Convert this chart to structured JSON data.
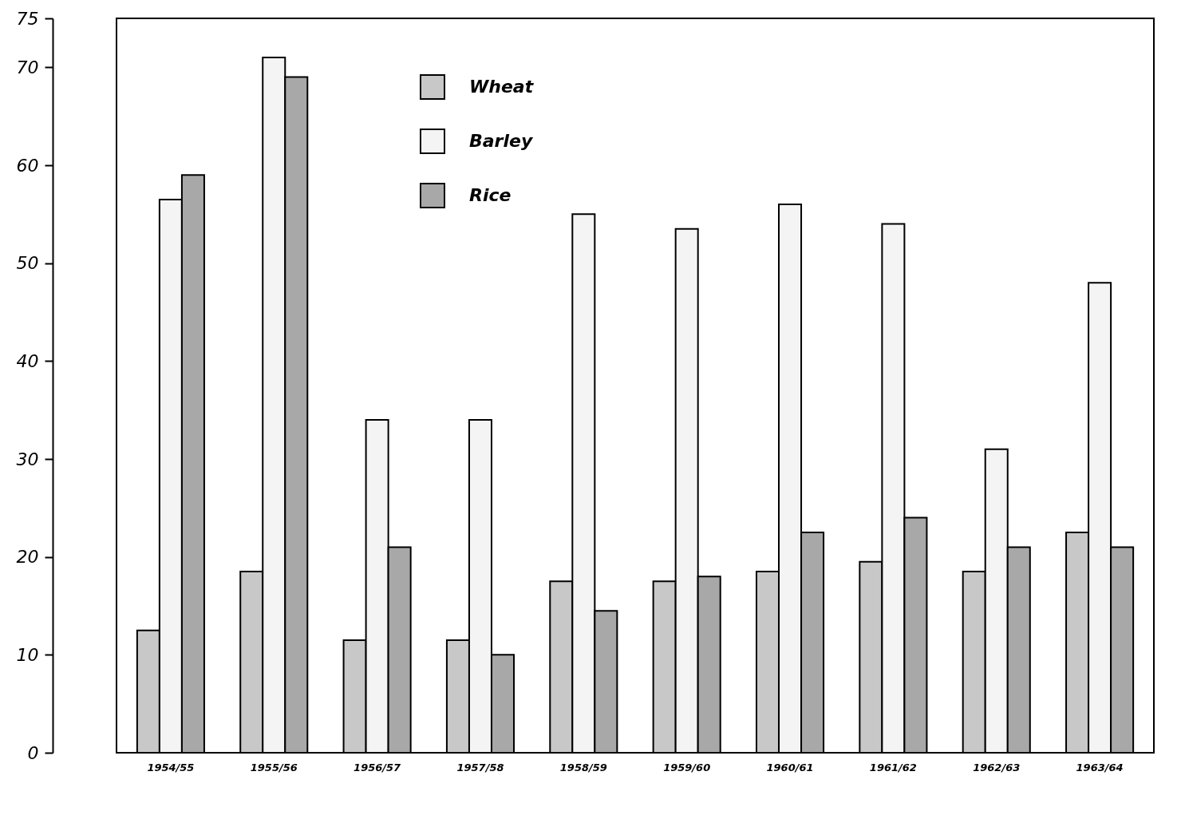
{
  "chart_data": {
    "type": "bar",
    "categories": [
      "1954/55",
      "1955/56",
      "1956/57",
      "1957/58",
      "1958/59",
      "1959/60",
      "1960/61",
      "1961/62",
      "1962/63",
      "1963/64"
    ],
    "series": [
      {
        "name": "Wheat",
        "color": "#c8c8c8",
        "values": [
          12.5,
          18.5,
          11.5,
          11.5,
          17.5,
          17.5,
          18.5,
          19.5,
          18.5,
          22.5
        ]
      },
      {
        "name": "Barley",
        "color": "#f4f4f4",
        "values": [
          56.5,
          71,
          34,
          34,
          55,
          53.5,
          56,
          54,
          31,
          48
        ]
      },
      {
        "name": "Rice",
        "color": "#a8a8a8",
        "values": [
          59,
          69,
          21,
          10,
          14.5,
          18,
          22.5,
          24,
          21,
          21
        ]
      }
    ],
    "ylim": [
      0,
      75
    ],
    "yticks": [
      0,
      10,
      20,
      30,
      40,
      50,
      60,
      70,
      75
    ],
    "grid": false,
    "legend": "top left"
  }
}
